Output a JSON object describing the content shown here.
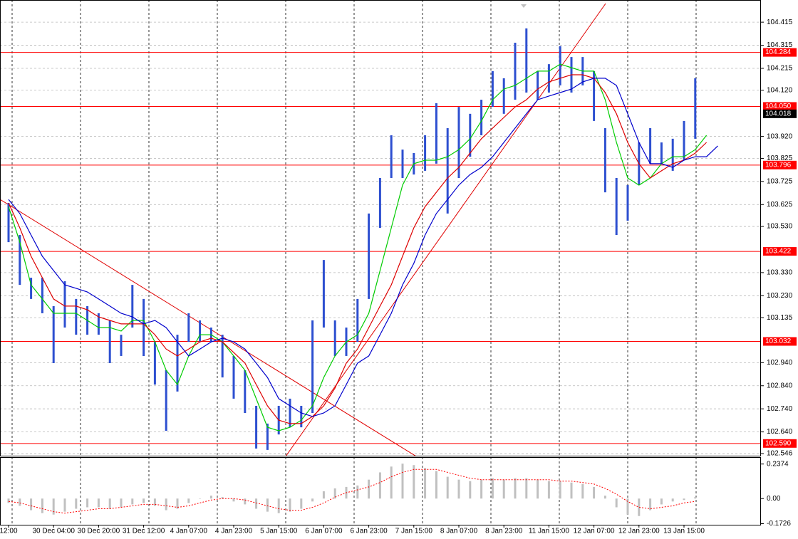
{
  "chart_data": {
    "type": "ohlc",
    "categories": [
      "12:00",
      null,
      null,
      null,
      "30 Dec 04:00",
      null,
      null,
      null,
      "30 Dec 20:00",
      null,
      null,
      null,
      "31 Dec 12:00",
      null,
      null,
      null,
      "4 Jan 07:00",
      null,
      null,
      null,
      "4 Jan 23:00",
      null,
      null,
      null,
      "5 Jan 15:00",
      null,
      null,
      null,
      "6 Jan 07:00",
      null,
      null,
      null,
      "6 Jan 23:00",
      null,
      null,
      null,
      "7 Jan 15:00",
      null,
      null,
      null,
      "8 Jan 07:00",
      null,
      null,
      null,
      "8 Jan 23:00",
      null,
      null,
      null,
      "11 Jan 15:00",
      null,
      null,
      null,
      "12 Jan 07:00",
      null,
      null,
      null,
      "12 Jan 23:00",
      null,
      null,
      null,
      "13 Jan 15:00",
      null,
      null,
      null
    ],
    "high": [
      103.632,
      103.493,
      103.308,
      103.308,
      103.185,
      103.293,
      103.216,
      103.185,
      103.154,
      103.123,
      103.061,
      103.277,
      103.216,
      103.03,
      102.907,
      103.061,
      103.154,
      103.123,
      103.092,
      103.061,
      102.969,
      102.907,
      102.753,
      102.676,
      102.753,
      102.784,
      102.753,
      103.123,
      103.385,
      103.123,
      103.092,
      103.216,
      103.586,
      103.74,
      103.925,
      103.863,
      103.848,
      103.925,
      104.064,
      103.956,
      104.048,
      104.018,
      104.079,
      104.203,
      104.172,
      104.326,
      104.388,
      104.203,
      104.233,
      104.311,
      104.264,
      104.264,
      104.203,
      103.956,
      103.74,
      103.709,
      103.894,
      103.956,
      103.894,
      103.91,
      103.987,
      104.172,
      null,
      null
    ],
    "low": [
      103.462,
      103.277,
      103.216,
      103.154,
      102.938,
      103.092,
      103.061,
      103.061,
      103.061,
      102.938,
      102.969,
      103.092,
      102.969,
      102.845,
      102.645,
      102.815,
      103.03,
      103.03,
      103.03,
      102.876,
      102.784,
      102.722,
      102.568,
      102.562,
      102.629,
      102.66,
      102.66,
      102.722,
      103.092,
      102.969,
      102.969,
      103.03,
      103.216,
      103.524,
      103.74,
      103.74,
      103.755,
      103.771,
      103.802,
      103.586,
      103.74,
      103.832,
      103.925,
      104.048,
      104.018,
      104.079,
      104.11,
      104.079,
      104.11,
      104.141,
      104.11,
      104.141,
      103.987,
      103.678,
      103.493,
      103.555,
      103.709,
      103.802,
      103.802,
      103.771,
      103.817,
      103.91,
      null,
      null
    ],
    "color": "#2d4fd0",
    "series": [
      {
        "color": "#00cc00",
        "values": [
          103.616,
          103.462,
          103.277,
          103.216,
          103.154,
          103.154,
          103.154,
          103.123,
          103.092,
          103.092,
          103.077,
          103.123,
          103.123,
          103.03,
          102.907,
          102.845,
          102.969,
          103.061,
          103.061,
          103.03,
          102.969,
          102.907,
          102.784,
          102.66,
          102.645,
          102.66,
          102.691,
          102.753,
          102.876,
          102.969,
          103.03,
          103.061,
          103.154,
          103.339,
          103.524,
          103.709,
          103.802,
          103.817,
          103.817,
          103.832,
          103.863,
          103.91,
          103.987,
          104.079,
          104.125,
          104.141,
          104.172,
          104.203,
          104.203,
          104.233,
          104.218,
          104.203,
          104.203,
          104.079,
          103.894,
          103.74,
          103.709,
          103.74,
          103.802,
          103.832,
          103.832,
          103.863,
          103.925,
          null
        ]
      },
      {
        "color": "#dd0000",
        "values": [
          103.632,
          103.524,
          103.401,
          103.308,
          103.216,
          103.185,
          103.185,
          103.169,
          103.138,
          103.123,
          103.108,
          103.108,
          103.108,
          103.061,
          102.999,
          102.969,
          102.999,
          103.03,
          103.046,
          103.03,
          102.984,
          102.938,
          102.845,
          102.753,
          102.691,
          102.676,
          102.676,
          102.707,
          102.753,
          102.83,
          102.938,
          102.999,
          103.092,
          103.185,
          103.277,
          103.401,
          103.524,
          103.616,
          103.678,
          103.74,
          103.786,
          103.848,
          103.91,
          103.956,
          104.002,
          104.048,
          104.079,
          104.125,
          104.156,
          104.172,
          104.187,
          104.187,
          104.172,
          104.11,
          104.018,
          103.894,
          103.802,
          103.74,
          103.771,
          103.802,
          103.817,
          103.848,
          103.894,
          null
        ]
      },
      {
        "color": "#0000cc",
        "values": [
          103.647,
          103.586,
          103.493,
          103.401,
          103.339,
          103.277,
          103.262,
          103.246,
          103.216,
          103.185,
          103.154,
          103.138,
          103.108,
          103.123,
          103.092,
          103.03,
          102.969,
          102.999,
          103.03,
          103.046,
          103.03,
          102.999,
          102.938,
          102.876,
          102.784,
          102.753,
          102.722,
          102.707,
          102.722,
          102.753,
          102.845,
          102.938,
          102.969,
          103.061,
          103.154,
          103.277,
          103.37,
          103.493,
          103.586,
          103.647,
          103.709,
          103.755,
          103.786,
          103.832,
          103.894,
          103.956,
          104.018,
          104.079,
          104.095,
          104.11,
          104.125,
          104.156,
          104.172,
          104.172,
          104.141,
          104.018,
          103.894,
          103.802,
          103.802,
          103.786,
          103.817,
          103.832,
          103.832,
          103.879
        ]
      }
    ],
    "ylim": [
      102.537,
      104.511
    ],
    "yticks": [
      104.415,
      104.315,
      104.215,
      {
        "value": 104.12,
        "label": "104.120"
      },
      {
        "value": 103.92,
        "label": "103.920"
      },
      103.825,
      103.725,
      103.625,
      {
        "value": 103.53,
        "label": "103.530"
      },
      {
        "value": 103.33,
        "label": "103.330"
      },
      {
        "value": 103.23,
        "label": "103.230"
      },
      103.135,
      {
        "value": 102.94,
        "label": "102.940"
      },
      {
        "value": 102.84,
        "label": "102.840"
      },
      {
        "value": 102.74,
        "label": "102.740"
      },
      {
        "value": 102.64,
        "label": "102.640"
      },
      102.546
    ],
    "grid": true,
    "levels": [
      104.284,
      {
        "value": 104.05,
        "label": "104.050"
      },
      103.796,
      103.422,
      103.032,
      {
        "value": 102.59,
        "label": "102.590"
      }
    ],
    "level_color": "#ff0000",
    "last_price": 104.018,
    "indicator": {
      "histogram": [
        -0.03,
        -0.05,
        -0.08,
        -0.1,
        -0.11,
        -0.09,
        -0.07,
        -0.06,
        -0.06,
        -0.07,
        -0.06,
        -0.04,
        -0.03,
        -0.05,
        -0.08,
        -0.07,
        -0.03,
        0.0,
        0.02,
        0.01,
        -0.02,
        -0.04,
        -0.07,
        -0.09,
        -0.1,
        -0.09,
        -0.07,
        -0.02,
        0.05,
        0.07,
        0.08,
        0.09,
        0.13,
        0.18,
        0.22,
        0.24,
        0.23,
        0.21,
        0.19,
        0.15,
        0.13,
        0.12,
        0.13,
        0.14,
        0.13,
        0.14,
        0.14,
        0.13,
        0.12,
        0.12,
        0.11,
        0.1,
        0.08,
        0.02,
        -0.06,
        -0.11,
        -0.12,
        -0.08,
        -0.04,
        -0.02,
        -0.01,
        0.01,
        null,
        null
      ],
      "signal": [
        -0.02,
        -0.03,
        -0.05,
        -0.07,
        -0.09,
        -0.1,
        -0.09,
        -0.08,
        -0.07,
        -0.07,
        -0.06,
        -0.05,
        -0.04,
        -0.04,
        -0.05,
        -0.06,
        -0.05,
        -0.03,
        -0.01,
        0.0,
        0.0,
        -0.01,
        -0.03,
        -0.05,
        -0.07,
        -0.08,
        -0.08,
        -0.06,
        -0.03,
        0.01,
        0.04,
        0.06,
        0.08,
        0.11,
        0.15,
        0.18,
        0.2,
        0.2,
        0.2,
        0.18,
        0.16,
        0.14,
        0.13,
        0.13,
        0.13,
        0.13,
        0.13,
        0.13,
        0.13,
        0.12,
        0.12,
        0.11,
        0.1,
        0.07,
        0.03,
        -0.02,
        -0.06,
        -0.07,
        -0.06,
        -0.05,
        -0.03,
        -0.02,
        null,
        null
      ],
      "histogram_color": "#c0c0c0",
      "signal_color": "#ff0000",
      "ylim": [
        -0.18,
        0.28
      ],
      "yticks": [
        0.2374,
        {
          "value": 0,
          "label": "0.00"
        },
        -0.1726
      ]
    }
  }
}
